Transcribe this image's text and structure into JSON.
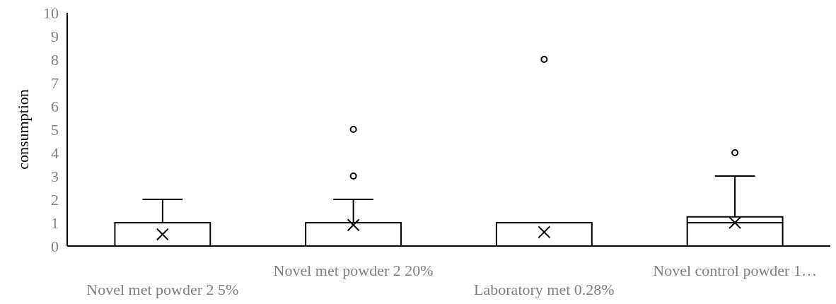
{
  "chart_data": {
    "type": "box",
    "ylabel": "consumption",
    "categories": [
      "Novel met powder 2 5%",
      "Novel met powder 2 20%",
      "Laboratory met 0.28%",
      "Novel control powder 1…"
    ],
    "boxes": [
      {
        "low": 0,
        "q1": 0,
        "median": 0,
        "q3": 1,
        "high": 2,
        "mean": 0.5
      },
      {
        "low": 0,
        "q1": 0,
        "median": 0,
        "q3": 1,
        "high": 2,
        "mean": 0.9,
        "outliers": [
          3,
          5
        ]
      },
      {
        "low": 0,
        "q1": 0,
        "median": 0,
        "q3": 1,
        "high": 1,
        "mean": 0.6,
        "outliers": [
          8
        ]
      },
      {
        "low": 0,
        "q1": 0,
        "median": 1,
        "q3": 1.25,
        "high": 3,
        "mean": 1,
        "outliers": [
          4
        ]
      }
    ],
    "ylim": [
      0,
      10
    ],
    "yticks": [
      0,
      1,
      2,
      3,
      4,
      5,
      6,
      7,
      8,
      9,
      10
    ],
    "grid": false
  }
}
